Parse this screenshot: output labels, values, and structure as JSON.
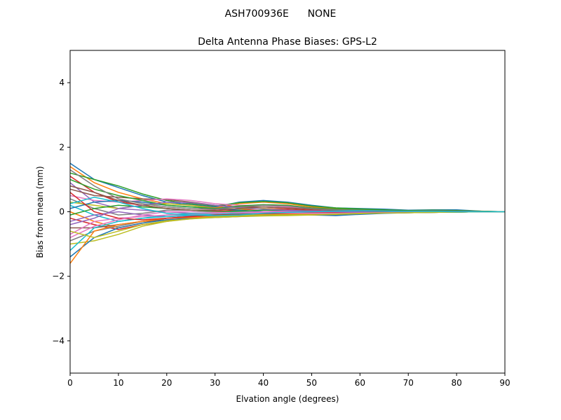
{
  "figure": {
    "suptitle": "ASH700936E      NONE"
  },
  "chart_data": {
    "type": "line",
    "title": "Delta Antenna Phase Biases: GPS-L2",
    "xlabel": "Elvation angle (degrees)",
    "ylabel": "Bias from mean (mm)",
    "xlim": [
      0,
      90
    ],
    "ylim": [
      -5,
      5
    ],
    "xticks": [
      0,
      10,
      20,
      30,
      40,
      50,
      60,
      70,
      80,
      90
    ],
    "yticks": [
      -4,
      -2,
      0,
      2,
      4
    ],
    "grid": false,
    "colors": [
      "#1f77b4",
      "#ff7f0e",
      "#2ca02c",
      "#d62728",
      "#9467bd",
      "#8c564b",
      "#e377c2",
      "#7f7f7f",
      "#bcbd22",
      "#17becf"
    ],
    "x": [
      0,
      5,
      10,
      15,
      20,
      25,
      30,
      35,
      40,
      45,
      50,
      55,
      60,
      65,
      70,
      75,
      80,
      85,
      90
    ],
    "series": [
      {
        "values": [
          1.5,
          1.0,
          0.75,
          0.5,
          0.3,
          0.22,
          0.15,
          0.3,
          0.35,
          0.3,
          0.2,
          0.12,
          0.1,
          0.08,
          0.05,
          0.06,
          0.06,
          0.02,
          0
        ]
      },
      {
        "values": [
          1.4,
          0.9,
          0.6,
          0.4,
          0.25,
          0.2,
          0.12,
          0.25,
          0.3,
          0.25,
          0.15,
          0.1,
          0.08,
          0.05,
          0.03,
          0.04,
          0.03,
          0.01,
          0
        ]
      },
      {
        "values": [
          1.2,
          1.0,
          0.8,
          0.55,
          0.35,
          0.25,
          0.18,
          0.28,
          0.32,
          0.28,
          0.18,
          0.12,
          0.09,
          0.06,
          0.04,
          0.05,
          0.04,
          0.02,
          0
        ]
      },
      {
        "values": [
          1.1,
          0.6,
          0.3,
          0.2,
          0.1,
          0.05,
          0.02,
          0.05,
          0.1,
          0.08,
          0.05,
          0.02,
          0.02,
          0.01,
          0,
          0.01,
          0,
          0,
          0
        ]
      },
      {
        "values": [
          0.9,
          0.3,
          0.1,
          0.05,
          0.0,
          -0.05,
          -0.05,
          0.0,
          0.05,
          0.03,
          0.0,
          -0.02,
          -0.02,
          -0.01,
          -0.01,
          0,
          0,
          0,
          0
        ]
      },
      {
        "values": [
          0.7,
          0.5,
          0.45,
          0.4,
          0.38,
          0.3,
          0.2,
          0.15,
          0.15,
          0.12,
          0.08,
          0.05,
          0.03,
          0.02,
          0.01,
          0.01,
          0,
          0,
          0
        ]
      },
      {
        "values": [
          0.5,
          0.35,
          0.3,
          0.35,
          0.4,
          0.35,
          0.25,
          0.2,
          0.2,
          0.15,
          0.1,
          0.05,
          0.03,
          0.02,
          0.01,
          0.01,
          0.01,
          0,
          0
        ]
      },
      {
        "values": [
          0.4,
          0.1,
          -0.1,
          -0.05,
          0.05,
          0.05,
          0.0,
          -0.05,
          -0.05,
          -0.06,
          -0.08,
          -0.1,
          -0.05,
          -0.03,
          -0.02,
          -0.01,
          -0.01,
          0,
          0
        ]
      },
      {
        "values": [
          0.3,
          0.2,
          0.1,
          0.2,
          0.25,
          0.2,
          0.1,
          0.08,
          0.1,
          0.05,
          0.0,
          -0.05,
          -0.05,
          -0.03,
          -0.02,
          -0.02,
          -0.01,
          0,
          0
        ]
      },
      {
        "values": [
          0.2,
          -0.1,
          -0.3,
          -0.2,
          -0.1,
          -0.05,
          -0.05,
          0.0,
          0.05,
          0.05,
          0.02,
          0.0,
          0.0,
          0.0,
          0,
          0,
          0,
          0,
          0
        ]
      },
      {
        "values": [
          0.1,
          0.3,
          0.35,
          0.3,
          0.2,
          0.15,
          0.1,
          0.05,
          0.0,
          -0.05,
          -0.1,
          -0.12,
          -0.08,
          -0.05,
          -0.03,
          -0.02,
          -0.01,
          0,
          0
        ]
      },
      {
        "values": [
          0.0,
          -0.3,
          -0.5,
          -0.35,
          -0.2,
          -0.15,
          -0.1,
          -0.08,
          -0.05,
          -0.05,
          -0.05,
          -0.05,
          -0.03,
          -0.02,
          -0.01,
          -0.01,
          0,
          0,
          0
        ]
      },
      {
        "values": [
          -0.1,
          0.1,
          0.2,
          0.15,
          0.1,
          0.05,
          0.0,
          0.02,
          0.05,
          0.05,
          0.03,
          0.02,
          0.02,
          0.01,
          0,
          0,
          0,
          0,
          0
        ]
      },
      {
        "values": [
          -0.2,
          -0.4,
          -0.55,
          -0.4,
          -0.3,
          -0.2,
          -0.15,
          -0.1,
          -0.08,
          -0.05,
          -0.05,
          -0.05,
          -0.03,
          -0.02,
          -0.02,
          -0.01,
          0,
          0,
          0
        ]
      },
      {
        "values": [
          -0.3,
          -0.1,
          0.0,
          -0.1,
          -0.15,
          -0.12,
          -0.1,
          -0.05,
          0.0,
          0.02,
          0.03,
          0.02,
          0.01,
          0.01,
          0,
          0,
          0,
          0,
          0
        ]
      },
      {
        "values": [
          -0.5,
          -0.5,
          -0.4,
          -0.3,
          -0.25,
          -0.2,
          -0.18,
          -0.15,
          -0.12,
          -0.1,
          -0.1,
          -0.08,
          -0.05,
          -0.04,
          -0.03,
          -0.02,
          -0.01,
          0,
          0
        ]
      },
      {
        "values": [
          -0.7,
          -0.3,
          -0.2,
          -0.15,
          -0.1,
          -0.08,
          -0.05,
          -0.02,
          0.0,
          0.0,
          -0.02,
          -0.03,
          -0.02,
          -0.01,
          0,
          0,
          0,
          0,
          0
        ]
      },
      {
        "values": [
          -0.9,
          -0.6,
          -0.45,
          -0.3,
          -0.2,
          -0.15,
          -0.12,
          -0.1,
          -0.08,
          -0.06,
          -0.05,
          -0.04,
          -0.03,
          -0.02,
          -0.01,
          -0.01,
          0,
          0,
          0
        ]
      },
      {
        "values": [
          -1.0,
          -0.9,
          -0.7,
          -0.45,
          -0.3,
          -0.22,
          -0.18,
          -0.15,
          -0.13,
          -0.12,
          -0.1,
          -0.08,
          -0.06,
          -0.04,
          -0.03,
          -0.02,
          -0.01,
          0,
          0
        ]
      },
      {
        "values": [
          -1.2,
          -0.5,
          -0.3,
          -0.2,
          -0.15,
          -0.1,
          -0.08,
          -0.05,
          -0.05,
          -0.05,
          -0.06,
          -0.06,
          -0.04,
          -0.03,
          -0.02,
          -0.01,
          0,
          0,
          0
        ]
      },
      {
        "values": [
          -1.4,
          -0.8,
          -0.5,
          -0.35,
          -0.25,
          -0.2,
          -0.15,
          -0.12,
          -0.1,
          -0.08,
          -0.08,
          -0.07,
          -0.05,
          -0.04,
          -0.03,
          -0.02,
          -0.01,
          0,
          0
        ]
      },
      {
        "values": [
          -1.6,
          -0.6,
          -0.4,
          -0.3,
          -0.2,
          -0.18,
          -0.15,
          -0.1,
          -0.08,
          -0.07,
          -0.06,
          -0.05,
          -0.04,
          -0.03,
          -0.02,
          -0.01,
          0,
          0,
          0
        ]
      },
      {
        "values": [
          1.0,
          0.7,
          0.5,
          0.35,
          0.2,
          0.15,
          0.1,
          0.18,
          0.22,
          0.2,
          0.12,
          0.08,
          0.06,
          0.04,
          0.02,
          0.03,
          0.02,
          0.01,
          0
        ]
      },
      {
        "values": [
          0.6,
          0.0,
          -0.2,
          -0.25,
          -0.2,
          -0.15,
          -0.1,
          -0.08,
          -0.06,
          -0.05,
          -0.04,
          -0.03,
          -0.02,
          -0.01,
          0,
          0,
          0,
          0,
          0
        ]
      },
      {
        "values": [
          -0.4,
          -0.2,
          0.1,
          0.2,
          0.3,
          0.28,
          0.2,
          0.12,
          0.08,
          0.05,
          0.02,
          0.0,
          -0.02,
          -0.02,
          -0.01,
          -0.01,
          0,
          0,
          0
        ]
      },
      {
        "values": [
          0.8,
          0.6,
          0.35,
          0.2,
          0.1,
          0.05,
          0.05,
          0.1,
          0.15,
          0.12,
          0.08,
          0.05,
          0.03,
          0.02,
          0.01,
          0.01,
          0.01,
          0,
          0
        ]
      },
      {
        "values": [
          -0.8,
          -0.45,
          -0.25,
          -0.1,
          0.0,
          0.0,
          -0.02,
          -0.03,
          -0.03,
          -0.04,
          -0.05,
          -0.05,
          -0.04,
          -0.03,
          -0.02,
          -0.01,
          0,
          0,
          0
        ]
      },
      {
        "values": [
          1.3,
          0.8,
          0.4,
          0.25,
          0.15,
          0.1,
          0.08,
          0.15,
          0.2,
          0.18,
          0.1,
          0.06,
          0.05,
          0.03,
          0.02,
          0.03,
          0.02,
          0.01,
          0
        ]
      },
      {
        "values": [
          -0.6,
          -0.8,
          -0.6,
          -0.4,
          -0.28,
          -0.22,
          -0.16,
          -0.12,
          -0.1,
          -0.09,
          -0.09,
          -0.07,
          -0.05,
          -0.04,
          -0.03,
          -0.02,
          -0.01,
          0,
          0
        ]
      },
      {
        "values": [
          0.25,
          0.45,
          0.3,
          0.1,
          -0.05,
          -0.1,
          -0.12,
          -0.1,
          -0.05,
          -0.02,
          0.0,
          0.02,
          0.03,
          0.02,
          0.01,
          0.01,
          0,
          0,
          0
        ]
      }
    ]
  }
}
